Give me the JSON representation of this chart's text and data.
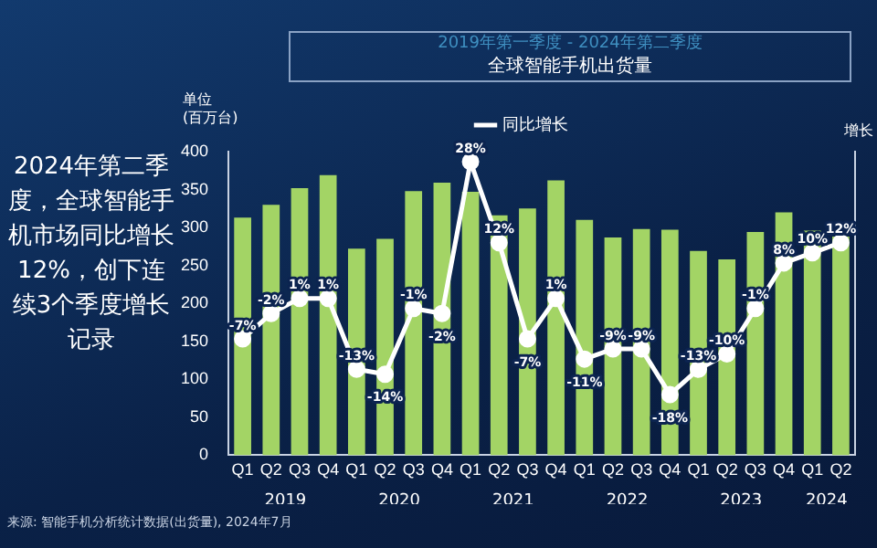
{
  "chart_data": {
    "type": "bar",
    "subtitle": "2019年第一季度 - 2024年第二季度",
    "title": "全球智能手机出货量",
    "ylabel": "单位 (百万台)",
    "y2label": "增长",
    "categories": [
      "Q1",
      "Q2",
      "Q3",
      "Q4",
      "Q1",
      "Q2",
      "Q3",
      "Q4",
      "Q1",
      "Q2",
      "Q3",
      "Q4",
      "Q1",
      "Q2",
      "Q3",
      "Q4",
      "Q1",
      "Q2",
      "Q3",
      "Q4",
      "Q1",
      "Q2"
    ],
    "series": [
      {
        "color": "#a3d465",
        "values": [
          313,
          330,
          352,
          369,
          272,
          285,
          348,
          359,
          347,
          316,
          325,
          362,
          310,
          287,
          298,
          297,
          269,
          258,
          294,
          320,
          296,
          288
        ]
      },
      {
        "type": "line",
        "name": "同比增长",
        "color": "#ffffff",
        "axis": "y2",
        "marker": "circle",
        "values": [
          -7,
          -2,
          1,
          1,
          -13,
          -14,
          -1,
          -2,
          28,
          12,
          -7,
          1,
          -11,
          -9,
          -9,
          -18,
          -13,
          -10,
          -1,
          8,
          10,
          12
        ],
        "value_labels": [
          "-7%",
          "-2%",
          "1%",
          "1%",
          "-13%",
          "-14%",
          "-1%",
          "-2%",
          "28%",
          "12%",
          "-7%",
          "1%",
          "-11%",
          "-9%",
          "-9%",
          "-18%",
          "-13%",
          "-10%",
          "-1%",
          "8%",
          "10%",
          "12%"
        ]
      }
    ],
    "ylim": [
      0,
      400
    ],
    "yticks": [
      0,
      50,
      100,
      150,
      200,
      250,
      300,
      350,
      400
    ],
    "y2lim": [
      -30,
      30
    ],
    "legend": "top",
    "grid": false,
    "annotations": [
      "2024年第二季度，全球智能手机市场同比增长12%，创下连续3个季度增长记录",
      "来源: 智能手机分析统计数据(出货量), 2024年7月",
      "2019",
      "2020",
      "2021",
      "2022",
      "2023",
      "2024"
    ]
  }
}
